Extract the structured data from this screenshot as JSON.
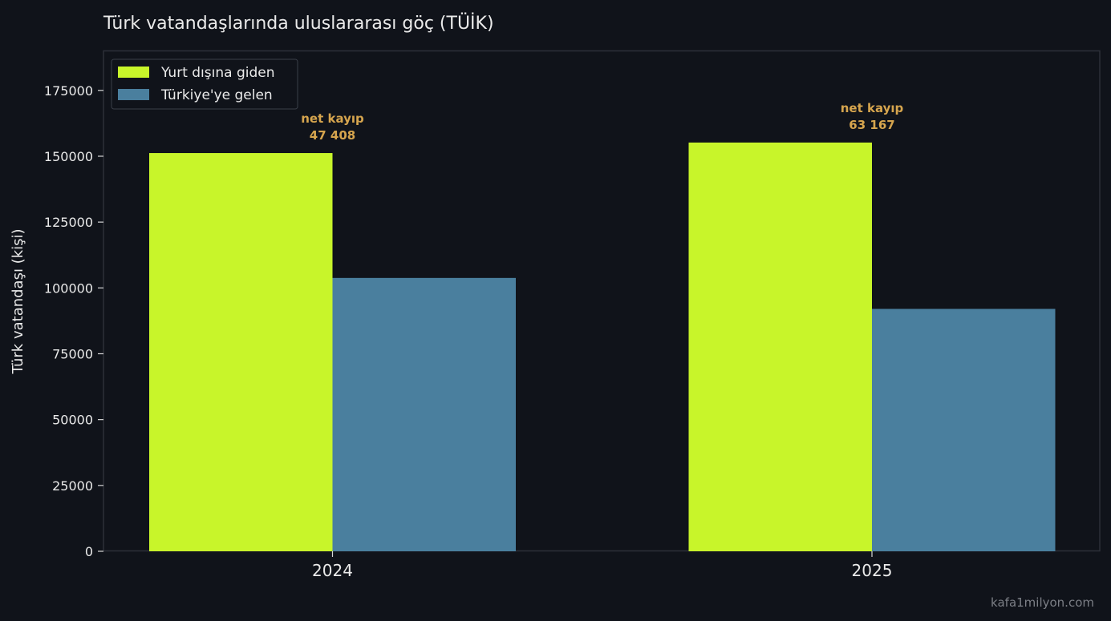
{
  "chart_data": {
    "type": "bar",
    "title": "Türk vatandaşlarında uluslararası göç (TÜİK)",
    "xlabel": "",
    "ylabel": "Türk vatandaşı (kişi)",
    "categories": [
      "2024",
      "2025"
    ],
    "series": [
      {
        "name": "Yurt dışına giden",
        "color": "#c8f52a",
        "values": [
          151200,
          155200
        ]
      },
      {
        "name": "Türkiye'ye gelen",
        "color": "#4a7f9e",
        "values": [
          103792,
          92033
        ]
      }
    ],
    "ylim": [
      0,
      190000
    ],
    "yticks": [
      0,
      25000,
      50000,
      75000,
      100000,
      125000,
      150000,
      175000
    ],
    "ytick_labels": [
      "0",
      "25000",
      "50000",
      "75000",
      "100000",
      "125000",
      "150000",
      "175000"
    ],
    "annotations": [
      {
        "category": "2024",
        "label": "net kayıp",
        "value": "47 408"
      },
      {
        "category": "2025",
        "label": "net kayıp",
        "value": "63 167"
      }
    ],
    "legend_position": "top-left",
    "grid": false,
    "annotation_color": "#d6a54e"
  },
  "watermark": "kafa1milyon.com"
}
